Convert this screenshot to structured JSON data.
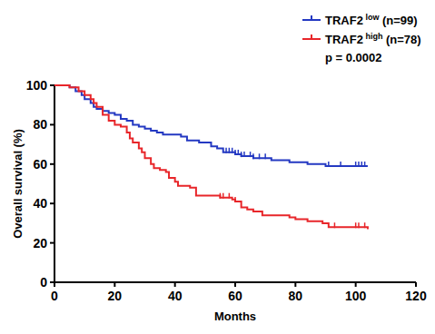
{
  "chart_data": {
    "type": "line",
    "line_style": "step",
    "x_label": "Months",
    "y_label": "Overall survival (%)",
    "annotation": "p = 0.0002",
    "xlim": [
      0,
      120
    ],
    "xticks": [
      0,
      20,
      40,
      60,
      80,
      100,
      120
    ],
    "ylim": [
      0,
      100
    ],
    "yticks": [
      0,
      20,
      40,
      60,
      80,
      100
    ],
    "grid": false,
    "legend": "top-right",
    "series": [
      {
        "name": "TRAF2 low (n=99)",
        "color": "#2439c2",
        "marker": "tick",
        "x": [
          0,
          5,
          7,
          9,
          10,
          12,
          13,
          14,
          16,
          18,
          20,
          22,
          24,
          26,
          28,
          30,
          32,
          34,
          36,
          42,
          44,
          48,
          52,
          54,
          56,
          60,
          62,
          66,
          72,
          78,
          84,
          90,
          104
        ],
        "values": [
          100,
          99,
          97,
          95,
          93,
          91,
          89,
          88,
          87,
          86,
          85,
          83,
          82,
          80,
          79,
          78,
          77,
          76,
          75,
          74,
          72,
          71,
          69,
          68,
          66,
          65,
          64,
          63,
          62,
          61,
          60,
          59,
          59
        ],
        "censored": [
          57,
          58,
          59,
          60,
          61,
          62,
          63,
          65,
          66,
          68,
          70,
          91,
          95,
          100,
          101,
          102,
          103
        ]
      },
      {
        "name": "TRAF2 high (n=78)",
        "color": "#e8262a",
        "marker": "tick",
        "x": [
          0,
          5,
          8,
          10,
          12,
          13,
          14,
          16,
          18,
          20,
          22,
          24,
          25,
          26,
          28,
          29,
          30,
          32,
          33,
          35,
          37,
          38,
          40,
          41,
          45,
          47,
          55,
          59,
          60,
          62,
          64,
          66,
          69,
          78,
          80,
          84,
          89,
          91,
          104
        ],
        "values": [
          100,
          99,
          97,
          95,
          93,
          91,
          89,
          85,
          82,
          80,
          79,
          76,
          73,
          71,
          68,
          66,
          63,
          60,
          58,
          57,
          56,
          53,
          51,
          49,
          48,
          44,
          43,
          42,
          41,
          38,
          37,
          36,
          34,
          33,
          32,
          31,
          30,
          28,
          27
        ],
        "censored": [
          55,
          56,
          58,
          60,
          93,
          100,
          101,
          103
        ]
      }
    ]
  }
}
